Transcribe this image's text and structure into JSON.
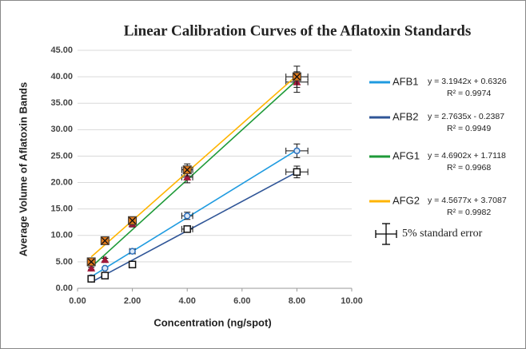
{
  "chart_data": {
    "type": "scatter",
    "title": "Linear Calibration Curves of the Aflatoxin Standards",
    "x_label": "Concentration (ng/spot)",
    "y_label": "Average Volume of Aflatoxin Bands",
    "x": [
      0.5,
      1,
      2,
      4,
      8
    ],
    "x_errors": [
      0.025,
      0.05,
      0.1,
      0.2,
      0.4
    ],
    "xlim": [
      0,
      10
    ],
    "xticks": [
      {
        "value": 0,
        "label": "0.00"
      },
      {
        "value": 2,
        "label": "2.00"
      },
      {
        "value": 4,
        "label": "4.00"
      },
      {
        "value": 6,
        "label": "6.00"
      },
      {
        "value": 8,
        "label": "8.00"
      },
      {
        "value": 10,
        "label": "10.00"
      }
    ],
    "ylim": [
      0,
      45
    ],
    "yticks": [
      {
        "value": 0,
        "label": "0.00"
      },
      {
        "value": 5,
        "label": "5.00"
      },
      {
        "value": 10,
        "label": "10.00"
      },
      {
        "value": 15,
        "label": "15.00"
      },
      {
        "value": 20,
        "label": "20.00"
      },
      {
        "value": 25,
        "label": "25.00"
      },
      {
        "value": 30,
        "label": "30.00"
      },
      {
        "value": 35,
        "label": "35.00"
      },
      {
        "value": 40,
        "label": "40.00"
      },
      {
        "value": 45,
        "label": "45.00"
      }
    ],
    "grid": true,
    "legend_position": "right",
    "error_legend": "5% standard error",
    "series": [
      {
        "name": "AFB1",
        "color": "#1f9be0",
        "marker": "circle",
        "marker_color": "#2e6fba",
        "equation": "y = 3.1942x + 0.6326",
        "r2": "R² = 0.9974",
        "values": [
          2.0,
          3.8,
          7.0,
          13.7,
          26.0
        ],
        "errors": [
          0.1,
          0.19,
          0.35,
          0.685,
          1.3
        ]
      },
      {
        "name": "AFB2",
        "color": "#2f5597",
        "marker": "square",
        "marker_color": "#111111",
        "equation": "y = 2.7635x - 0.2387",
        "r2": "R² = 0.9949",
        "values": [
          1.8,
          2.4,
          4.5,
          11.2,
          22.0
        ],
        "errors": [
          0.09,
          0.12,
          0.225,
          0.56,
          1.1
        ]
      },
      {
        "name": "AFG1",
        "color": "#1e9a38",
        "marker": "triangle",
        "marker_color": "#a0183a",
        "equation": "y = 4.6902x + 1.7118",
        "r2": "R² = 0.9968",
        "values": [
          3.8,
          5.4,
          12.2,
          21.0,
          39.0
        ],
        "errors": [
          0.19,
          0.27,
          0.61,
          1.05,
          1.95
        ]
      },
      {
        "name": "AFG2",
        "color": "#ffb400",
        "marker": "square-x",
        "marker_color": "#e07a1c",
        "equation": "y = 4.5677x + 3.7087",
        "r2": "R² = 0.9982",
        "values": [
          5.0,
          9.0,
          12.8,
          22.4,
          40.0
        ],
        "errors": [
          0.25,
          0.45,
          0.64,
          1.12,
          2.0
        ]
      }
    ]
  }
}
